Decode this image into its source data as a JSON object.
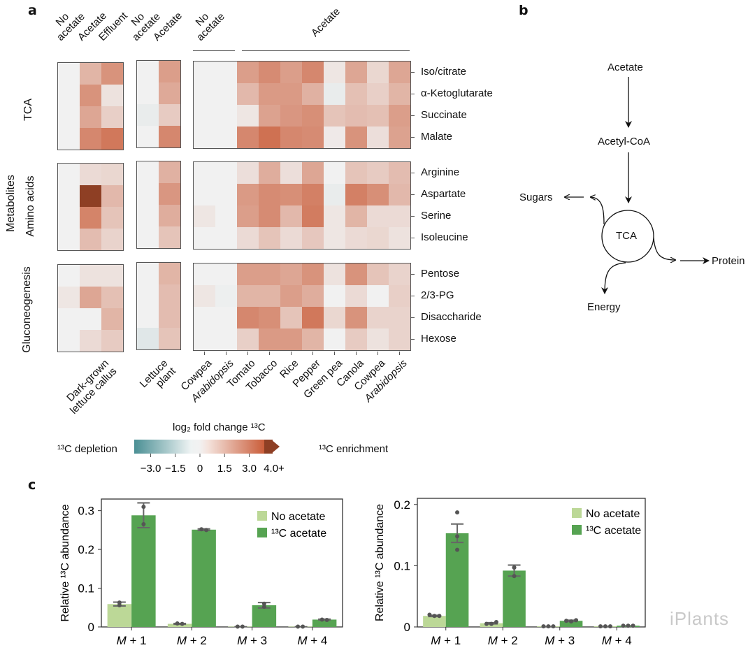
{
  "panels": {
    "a": "a",
    "b": "b",
    "c": "c"
  },
  "heatmap": {
    "column_groups_top": [
      {
        "lines": [
          "No",
          "acetate"
        ]
      },
      {
        "lines": [
          "Acetate"
        ]
      },
      {
        "lines": [
          "Effluent"
        ]
      },
      {
        "lines": [
          "No",
          "acetate"
        ]
      },
      {
        "lines": [
          "Acetate"
        ]
      },
      {
        "lines": [
          "No",
          "acetate"
        ]
      },
      {
        "lines": [
          "Acetate"
        ]
      }
    ],
    "column_labels_bottom": {
      "callus": [
        "Dark-grown",
        "lettuce callus"
      ],
      "plant": [
        "Lettuce",
        "plant"
      ],
      "species": [
        "Cowpea",
        "Arabidopsis",
        "Tomato",
        "Tobacco",
        "Rice",
        "Pepper",
        "Green pea",
        "Canola",
        "Cowpea",
        "Arabidopsis"
      ],
      "italic_species": [
        "Arabidopsis"
      ]
    },
    "y_group_label": "Metabolites",
    "row_groups": [
      {
        "name": "TCA",
        "rows": [
          "Iso/citrate",
          "α-Ketoglutarate",
          "Succinate",
          "Malate"
        ]
      },
      {
        "name": "Amino acids",
        "rows": [
          "Arginine",
          "Aspartate",
          "Serine",
          "Isoleucine"
        ]
      },
      {
        "name": "Gluconeogenesis",
        "rows": [
          "Pentose",
          "2/3-PG",
          "Disaccharide",
          "Hexose"
        ]
      }
    ],
    "colorbar": {
      "title": "log₂ fold change ¹³C",
      "left_label": "¹³C depletion",
      "right_label": "¹³C enrichment",
      "ticks": [
        "−3.0",
        "−1.5",
        "0",
        "1.5",
        "3.0",
        "4.0+"
      ],
      "range": [
        -4.0,
        4.0
      ],
      "neg_color": "#4a8f94",
      "mid_color": "#f1f1f1",
      "pos_color": "#c95a36",
      "max_color": "#8e3f24"
    }
  },
  "diagram": {
    "nodes": {
      "acetate": "Acetate",
      "acetyl_coa": "Acetyl-CoA",
      "tca": "TCA",
      "sugars": "Sugars",
      "protein": "Protein",
      "energy": "Energy"
    }
  },
  "chart_data": [
    {
      "type": "bar",
      "title": "Heatmap values (log2 fold change 13C), estimated from color",
      "note": "heatmap",
      "callus": {
        "columns": [
          "No acetate",
          "Acetate",
          "Effluent"
        ],
        "values": [
          [
            0,
            1.6,
            2.5
          ],
          [
            0,
            2.5,
            0.4
          ],
          [
            0,
            2.0,
            0.9
          ],
          [
            0,
            2.8,
            3.2
          ],
          [
            0,
            0.6,
            0.7
          ],
          [
            0,
            4.2,
            1.5
          ],
          [
            0,
            2.9,
            1.2
          ],
          [
            0,
            1.4,
            0.8
          ],
          [
            0,
            0.4,
            0.4
          ],
          [
            0.3,
            2.0,
            1.3
          ],
          [
            0,
            0,
            1.6
          ],
          [
            0,
            0.6,
            1.0
          ]
        ]
      },
      "plant": {
        "columns": [
          "No acetate",
          "Acetate"
        ],
        "values": [
          [
            0,
            2.2
          ],
          [
            0,
            1.9
          ],
          [
            -0.2,
            1.0
          ],
          [
            0,
            2.8
          ],
          [
            0,
            1.7
          ],
          [
            0,
            2.4
          ],
          [
            0,
            1.8
          ],
          [
            0,
            1.2
          ],
          [
            0,
            1.6
          ],
          [
            0,
            1.4
          ],
          [
            0,
            1.4
          ],
          [
            -0.4,
            1.2
          ]
        ]
      },
      "species": {
        "columns": [
          "Cowpea (No acetate)",
          "Arabidopsis (No acetate)",
          "Tomato",
          "Tobacco",
          "Rice",
          "Pepper",
          "Green pea",
          "Canola",
          "Cowpea",
          "Arabidopsis"
        ],
        "values": [
          [
            0,
            0,
            2.2,
            2.7,
            2.2,
            2.8,
            0.3,
            2.0,
            0.7,
            2.0
          ],
          [
            0,
            0,
            1.5,
            2.3,
            2.3,
            1.7,
            -0.2,
            1.3,
            0.9,
            1.6
          ],
          [
            0,
            0,
            0.3,
            2.1,
            2.4,
            2.6,
            1.2,
            1.4,
            1.3,
            2.2
          ],
          [
            0,
            0,
            2.8,
            3.4,
            2.8,
            2.7,
            0.2,
            2.5,
            0.5,
            2.1
          ],
          [
            0,
            0,
            0.5,
            1.8,
            0.5,
            2.0,
            0,
            1.2,
            1.0,
            1.4
          ],
          [
            0,
            0,
            2.3,
            2.7,
            2.6,
            3.0,
            -0.2,
            3.0,
            2.6,
            1.5
          ],
          [
            0.3,
            0,
            2.2,
            2.7,
            1.5,
            3.1,
            0.3,
            1.6,
            0.6,
            0.6
          ],
          [
            0,
            0,
            0.6,
            1.2,
            0.6,
            1.1,
            0.3,
            0.6,
            0.7,
            0.4
          ],
          [
            0,
            0,
            2.2,
            2.2,
            2.0,
            2.5,
            0.4,
            2.5,
            1.2,
            0.8
          ],
          [
            0.3,
            -0.1,
            1.6,
            1.6,
            2.2,
            1.8,
            0,
            0.6,
            0,
            0.9
          ],
          [
            0,
            0,
            2.8,
            2.6,
            1.2,
            3.2,
            0.7,
            2.5,
            0.8,
            0.8
          ],
          [
            0,
            0,
            0.9,
            2.3,
            2.3,
            1.6,
            0,
            1.0,
            0.4,
            0.8
          ]
        ]
      }
    },
    {
      "type": "bar",
      "title": "",
      "xlabel": "",
      "ylabel": "Relative ¹³C abundance",
      "ylim": [
        0,
        0.33
      ],
      "yticks": [
        "0",
        "0.1",
        "0.2",
        "0.3"
      ],
      "ytick_values": [
        0,
        0.1,
        0.2,
        0.3
      ],
      "categories": [
        "M + 1",
        "M + 2",
        "M + 3",
        "M + 4"
      ],
      "legend": "top-right",
      "series": [
        {
          "name": "No acetate",
          "color": "#bcd897",
          "values": [
            0.059,
            0.008,
            0.001,
            0.001
          ],
          "errors": [
            0.005,
            0.001,
            0,
            0
          ],
          "points": [
            [
              0.063,
              0.056
            ],
            [
              0.009,
              0.008
            ],
            [
              0.001,
              0.001
            ],
            [
              0.001,
              0.001
            ]
          ]
        },
        {
          "name": "¹³C acetate",
          "color": "#56a352",
          "values": [
            0.288,
            0.251,
            0.056,
            0.019
          ],
          "errors": [
            0.032,
            0.002,
            0.007,
            0.001
          ],
          "points": [
            [
              0.31,
              0.265
            ],
            [
              0.252,
              0.25
            ],
            [
              0.06,
              0.052
            ],
            [
              0.019,
              0.018
            ]
          ]
        }
      ]
    },
    {
      "type": "bar",
      "title": "",
      "xlabel": "",
      "ylabel": "Relative ¹³C abundance",
      "ylim": [
        0,
        0.21
      ],
      "yticks": [
        "0",
        "0.1",
        "0.2"
      ],
      "ytick_values": [
        0,
        0.1,
        0.2
      ],
      "categories": [
        "M + 1",
        "M + 2",
        "M + 3",
        "M + 4"
      ],
      "legend": "top-right",
      "series": [
        {
          "name": "No acetate",
          "color": "#bcd897",
          "values": [
            0.018,
            0.006,
            0.001,
            0.001
          ],
          "errors": [
            0.001,
            0.001,
            0,
            0
          ],
          "points": [
            [
              0.02,
              0.018,
              0.018
            ],
            [
              0.005,
              0.005,
              0.008
            ],
            [
              0.001,
              0.001,
              0.001
            ],
            [
              0.001,
              0.001,
              0.001
            ]
          ]
        },
        {
          "name": "¹³C acetate",
          "color": "#56a352",
          "values": [
            0.153,
            0.092,
            0.01,
            0.002
          ],
          "errors": [
            0.015,
            0.009,
            0.001,
            0.0005
          ],
          "points": [
            [
              0.187,
              0.148,
              0.126
            ],
            [
              0.097,
              0.097,
              0.083
            ],
            [
              0.01,
              0.009,
              0.011
            ],
            [
              0.002,
              0.002,
              0.002
            ]
          ]
        }
      ]
    }
  ],
  "watermark": "iPlants"
}
